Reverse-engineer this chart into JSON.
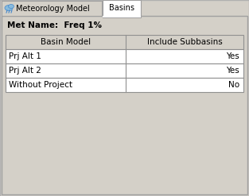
{
  "bg_color": "#d4d0c8",
  "white": "#ffffff",
  "row_color": "#eeecea",
  "tab_inactive_text": "Meteorology Model",
  "tab_active_text": "Basins",
  "met_name_label": "Met Name:  Freq 1%",
  "col_headers": [
    "Basin Model",
    "Include Subbasins"
  ],
  "rows": [
    [
      "Prj Alt 1",
      "Yes"
    ],
    [
      "Prj Alt 2",
      "Yes"
    ],
    [
      "Without Project",
      "No"
    ]
  ],
  "header_bg": "#d4d0c8",
  "border_color": "#a0a0a0",
  "border_dark": "#606060",
  "text_color": "#000000",
  "title_fontsize": 7.5,
  "cell_fontsize": 7.5,
  "header_fontsize": 7.5,
  "col_split": 0.505,
  "icon_color1": "#4488cc",
  "icon_color2": "#88bbdd"
}
